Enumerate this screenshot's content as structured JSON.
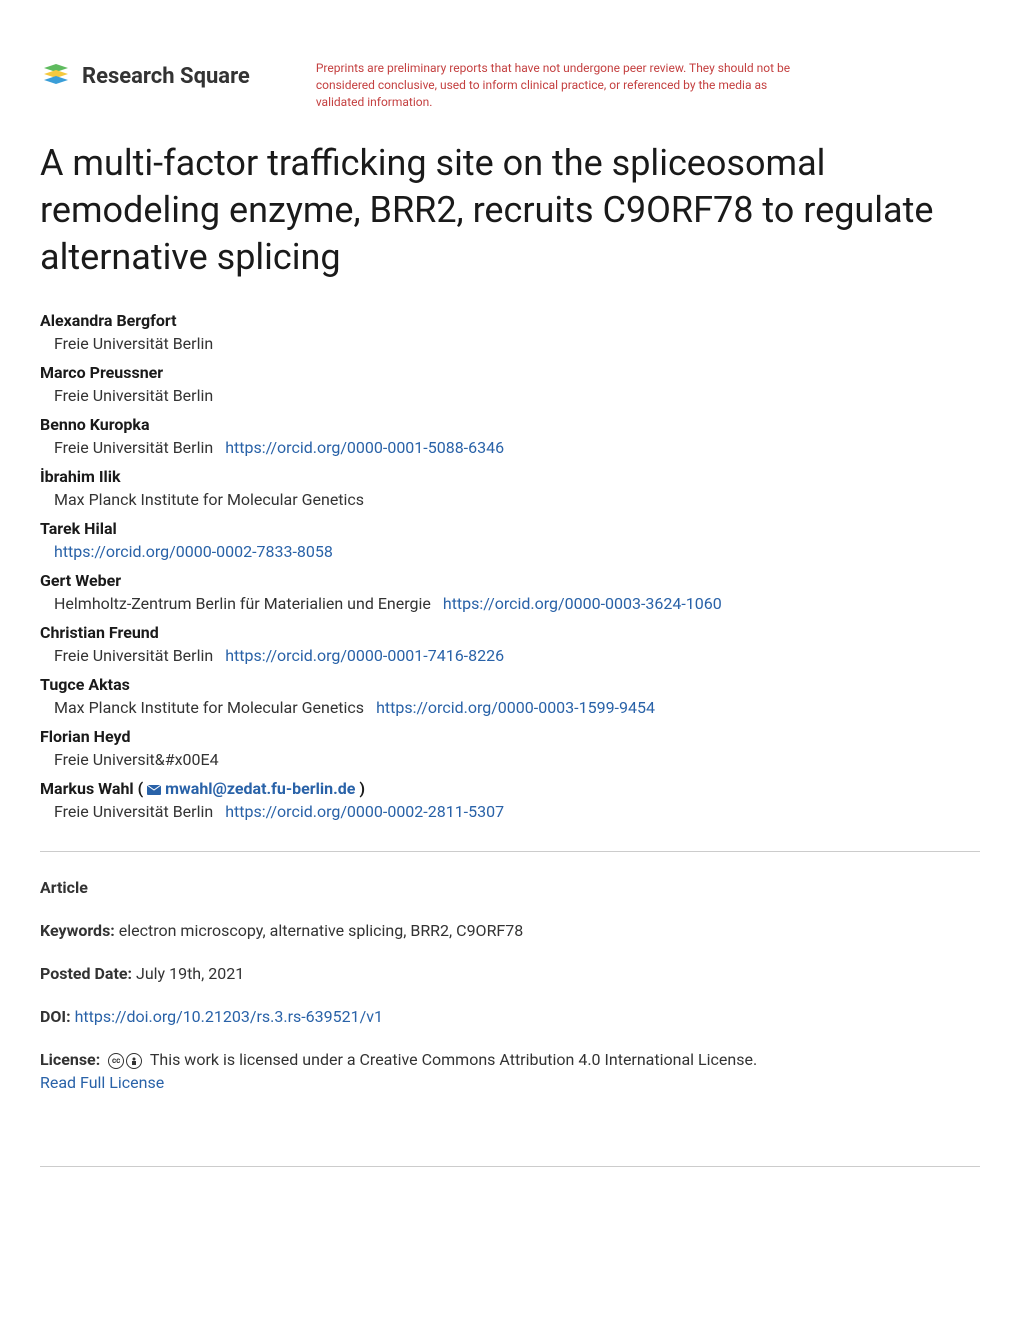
{
  "header": {
    "logo_text": "Research Square",
    "disclaimer": "Preprints are preliminary reports that have not undergone peer review. They should not be considered conclusive, used to inform clinical practice, or referenced by the media as validated information."
  },
  "title": "A multi-factor trafficking site on the spliceosomal remodeling enzyme, BRR2, recruits C9ORF78 to regulate alternative splicing",
  "authors": [
    {
      "name": "Alexandra Bergfort",
      "affiliation": "Freie Universität Berlin",
      "orcid": null,
      "email": null
    },
    {
      "name": "Marco Preussner",
      "affiliation": "Freie Universität Berlin",
      "orcid": null,
      "email": null
    },
    {
      "name": "Benno Kuropka",
      "affiliation": "Freie Universität Berlin",
      "orcid": "https://orcid.org/0000-0001-5088-6346",
      "email": null
    },
    {
      "name": "İbrahim Ilik",
      "affiliation": "Max Planck Institute for Molecular Genetics",
      "orcid": null,
      "email": null
    },
    {
      "name": "Tarek Hilal",
      "affiliation": "",
      "orcid": "https://orcid.org/0000-0002-7833-8058",
      "email": null
    },
    {
      "name": "Gert Weber",
      "affiliation": "Helmholtz-Zentrum Berlin für Materialien und Energie",
      "orcid": "https://orcid.org/0000-0003-3624-1060",
      "email": null
    },
    {
      "name": "Christian Freund",
      "affiliation": "Freie Universität Berlin",
      "orcid": "https://orcid.org/0000-0001-7416-8226",
      "email": null
    },
    {
      "name": "Tugce Aktas",
      "affiliation": "Max Planck Institute for Molecular Genetics",
      "orcid": "https://orcid.org/0000-0003-1599-9454",
      "email": null
    },
    {
      "name": "Florian Heyd",
      "affiliation": "Freie Universit&#x00E4",
      "orcid": null,
      "email": null
    },
    {
      "name": "Markus Wahl",
      "affiliation": "Freie Universität Berlin",
      "orcid": "https://orcid.org/0000-0002-2811-5307",
      "email": "mwahl@zedat.fu-berlin.de"
    }
  ],
  "meta": {
    "article_type": "Article",
    "keywords_label": "Keywords:",
    "keywords": "electron microscopy, alternative splicing, BRR2, C9ORF78",
    "posted_label": "Posted Date:",
    "posted_date": "July 19th, 2021",
    "doi_label": "DOI:",
    "doi": "https://doi.org/10.21203/rs.3.rs-639521/v1",
    "license_label": "License:",
    "license_text": "This work is licensed under a Creative Commons Attribution 4.0 International License.",
    "read_license": "Read Full License"
  },
  "colors": {
    "link": "#2962a8",
    "disclaimer": "#c44040",
    "text": "#333333",
    "divider": "#cccccc"
  }
}
